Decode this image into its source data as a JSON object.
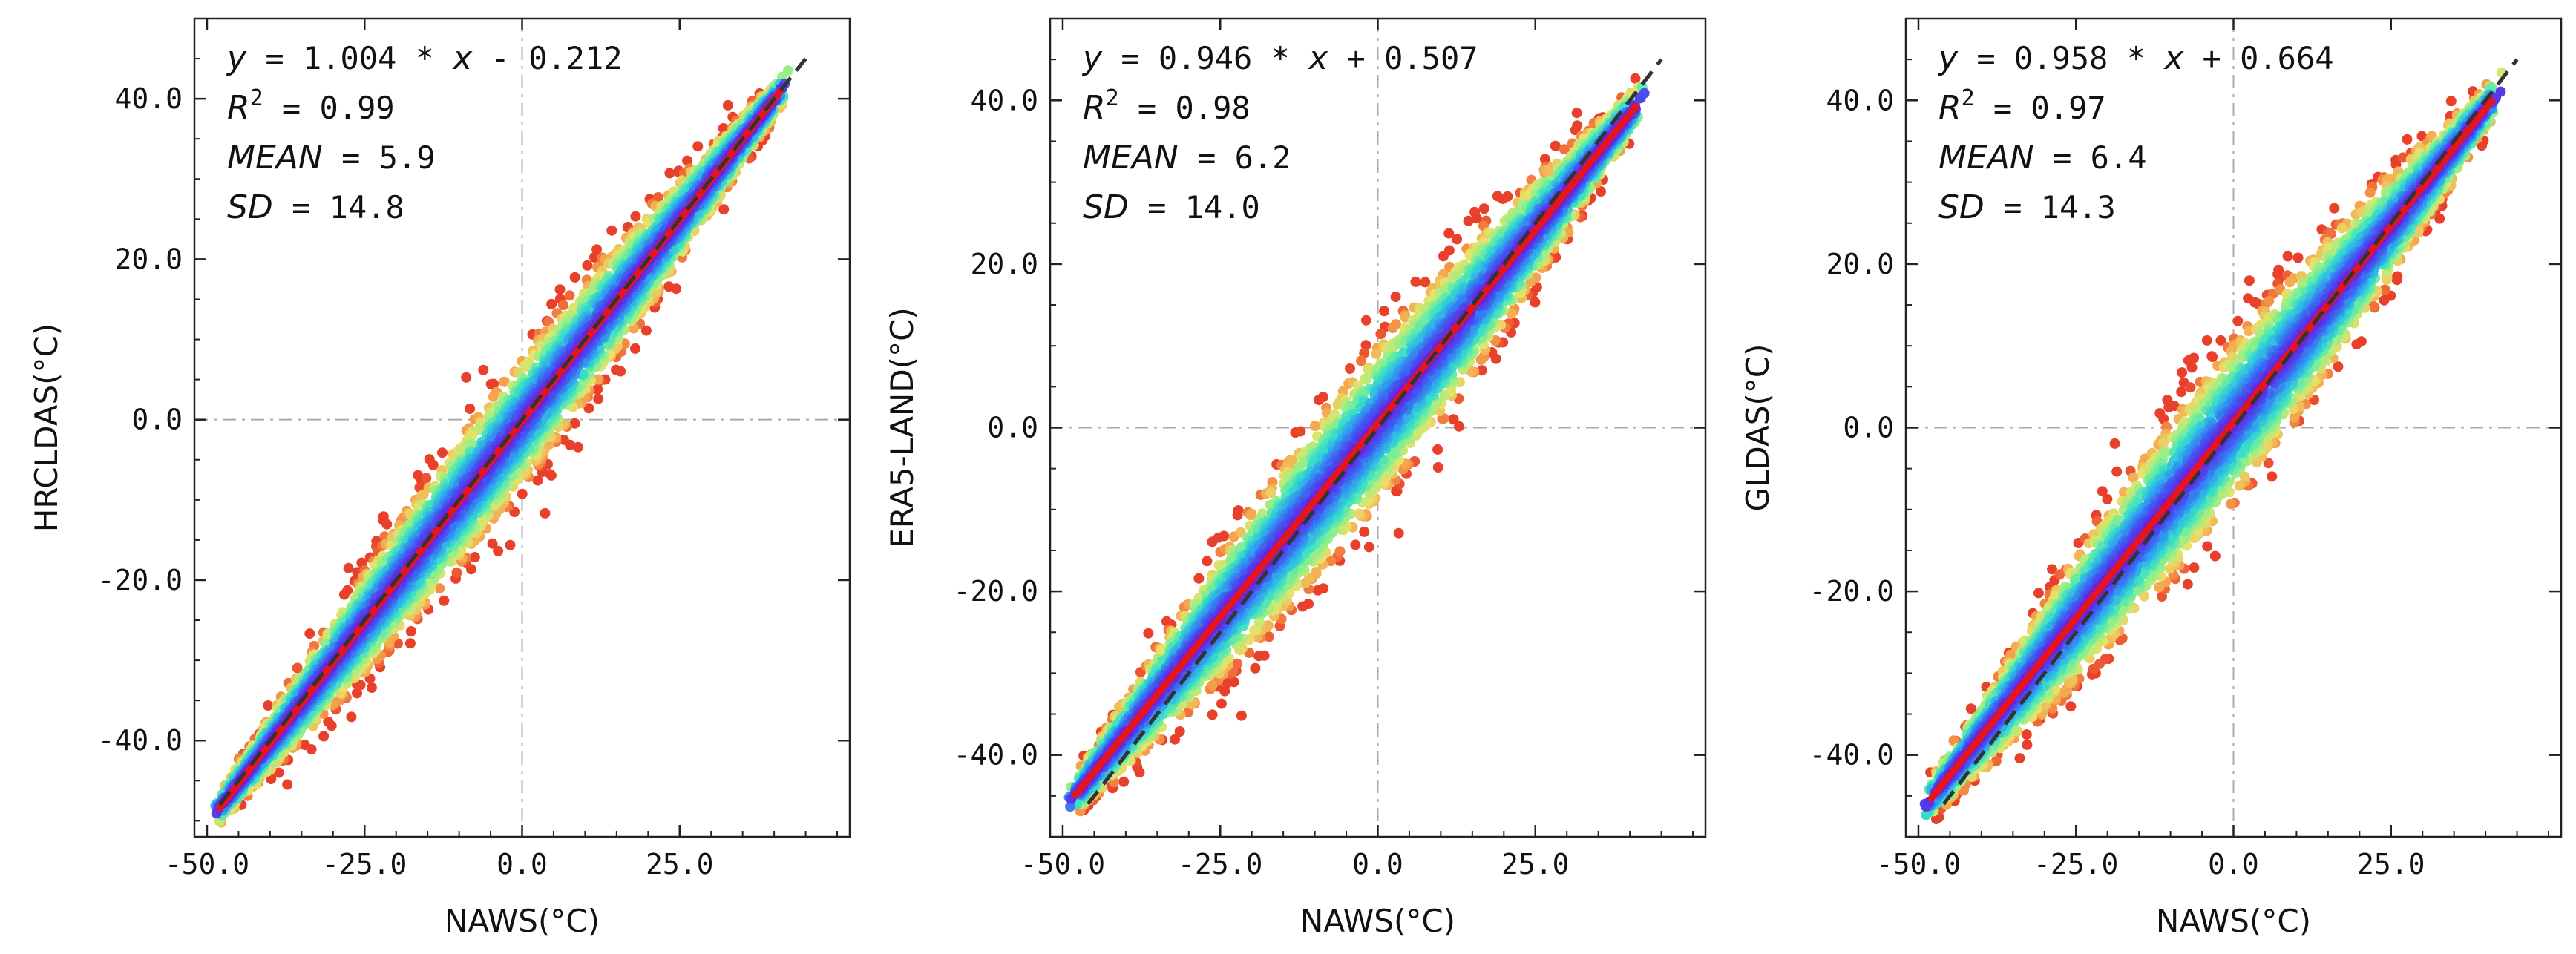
{
  "chart_data": [
    {
      "type": "scatter",
      "xlabel": "NAWS(°C)",
      "ylabel": "HRCLDAS(°C)",
      "xlim": [
        -52,
        52
      ],
      "ylim": [
        -52,
        50
      ],
      "xticks": [
        -50,
        -25,
        0,
        25
      ],
      "xtick_labels": [
        "-50.0",
        "-25.0",
        "0.0",
        "25.0"
      ],
      "yticks": [
        -40,
        -20,
        0,
        20,
        40
      ],
      "ytick_labels": [
        "-40.0",
        "-20.0",
        "0.0",
        "20.0",
        "40.0"
      ],
      "fit": {
        "slope": 1.004,
        "intercept": -0.212,
        "x_range": [
          -48,
          41
        ]
      },
      "one_to_one": {
        "x_range": [
          -48,
          45
        ]
      },
      "cloud_halfwidth": 9,
      "stats": {
        "equation_y": "y",
        "equation_x": "x",
        "equation_mid": " = 1.004 * ",
        "equation_tail": " - 0.212",
        "r2_label": "R",
        "r2_sup": "2",
        "r2_value": " = 0.99",
        "mean_label": "MEAN",
        "mean_value": " = 5.9",
        "sd_label": "SD",
        "sd_value": " = 14.8"
      }
    },
    {
      "type": "scatter",
      "xlabel": "NAWS(°C)",
      "ylabel": "ERA5-LAND(°C)",
      "xlim": [
        -52,
        52
      ],
      "ylim": [
        -50,
        50
      ],
      "xticks": [
        -50,
        -25,
        0,
        25
      ],
      "xtick_labels": [
        "-50.0",
        "-25.0",
        "0.0",
        "25.0"
      ],
      "yticks": [
        -40,
        -20,
        0,
        20,
        40
      ],
      "ytick_labels": [
        "-40.0",
        "-20.0",
        "0.0",
        "20.0",
        "40.0"
      ],
      "fit": {
        "slope": 0.946,
        "intercept": 0.507,
        "x_range": [
          -48,
          41
        ]
      },
      "one_to_one": {
        "x_range": [
          -46,
          45
        ]
      },
      "cloud_halfwidth": 11,
      "stats": {
        "equation_y": "y",
        "equation_x": "x",
        "equation_mid": " = 0.946 * ",
        "equation_tail": " + 0.507",
        "r2_label": "R",
        "r2_sup": "2",
        "r2_value": " = 0.98",
        "mean_label": "MEAN",
        "mean_value": " = 6.2",
        "sd_label": "SD",
        "sd_value": " = 14.0"
      }
    },
    {
      "type": "scatter",
      "xlabel": "NAWS(°C)",
      "ylabel": "GLDAS(°C)",
      "xlim": [
        -52,
        52
      ],
      "ylim": [
        -50,
        50
      ],
      "xticks": [
        -50,
        -25,
        0,
        25
      ],
      "xtick_labels": [
        "-50.0",
        "-25.0",
        "0.0",
        "25.0"
      ],
      "yticks": [
        -40,
        -20,
        0,
        20,
        40
      ],
      "ytick_labels": [
        "-40.0",
        "-20.0",
        "0.0",
        "20.0",
        "40.0"
      ],
      "fit": {
        "slope": 0.958,
        "intercept": 0.664,
        "x_range": [
          -48,
          41
        ]
      },
      "one_to_one": {
        "x_range": [
          -46,
          45
        ]
      },
      "cloud_halfwidth": 11,
      "stats": {
        "equation_y": "y",
        "equation_x": "x",
        "equation_mid": " = 0.958 * ",
        "equation_tail": " + 0.664",
        "r2_label": "R",
        "r2_sup": "2",
        "r2_value": " = 0.97",
        "mean_label": "MEAN",
        "mean_value": " = 6.4",
        "sd_label": "SD",
        "sd_value": " = 14.3"
      }
    }
  ],
  "colors": {
    "fit_line": "#e8141c",
    "one_to_one_line": "#333333",
    "reference_lines": "#aaaaaa",
    "density_ramp": [
      "#6a1fe0",
      "#3f5bf2",
      "#2fa4f0",
      "#38e0c8",
      "#8ff08a",
      "#e6e36a",
      "#f7a14c",
      "#e8402a"
    ]
  }
}
